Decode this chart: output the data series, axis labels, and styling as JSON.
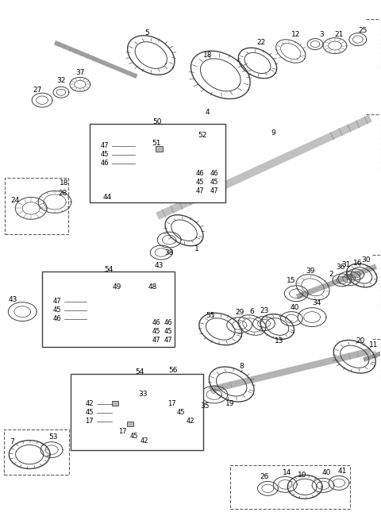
{
  "bg_color": "#ffffff",
  "line_color": "#404040",
  "label_color": "#000000",
  "figsize": [
    4.8,
    6.5
  ],
  "dpi": 100
}
